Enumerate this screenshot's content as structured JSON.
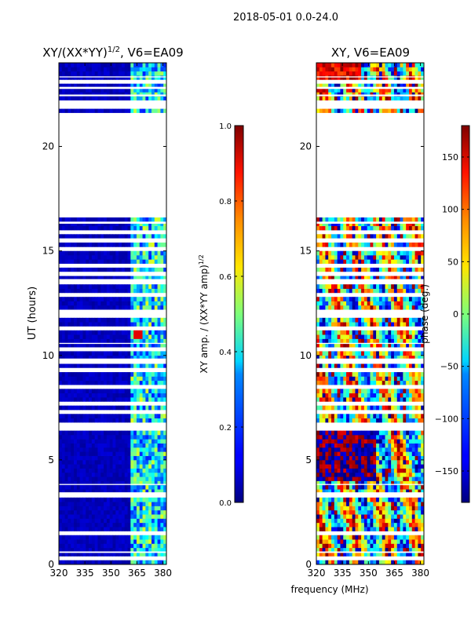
{
  "figure_title": "2018-05-01 0.0-24.0",
  "chart_data": [
    {
      "type": "heatmap",
      "title_main": "XY/(XX*YY)",
      "title_sup": "1/2",
      "title_tail": ", V6=EA09",
      "xlabel": "",
      "ylabel": "UT (hours)",
      "xlim": [
        320,
        382
      ],
      "ylim": [
        0,
        24
      ],
      "x_ticks": [
        320,
        335,
        350,
        365,
        380
      ],
      "y_ticks": [
        0,
        5,
        10,
        15,
        20
      ],
      "quantity": "normalized XY amplitude",
      "colorbar": {
        "label_main": "XY amp. / (XX*YY amp)",
        "label_sup": "1/2",
        "range": [
          0.0,
          1.0
        ],
        "ticks": [
          "0.0",
          "0.2",
          "0.4",
          "0.6",
          "0.8",
          "1.0"
        ],
        "tick_values": [
          0.0,
          0.2,
          0.4,
          0.6,
          0.8,
          1.0
        ]
      }
    },
    {
      "type": "heatmap",
      "title": "XY, V6=EA09",
      "xlabel": "frequency (MHz)",
      "ylabel": "",
      "xlim": [
        320,
        382
      ],
      "ylim": [
        0,
        24
      ],
      "x_ticks": [
        320,
        335,
        350,
        365,
        380
      ],
      "y_ticks": [
        0,
        5,
        10,
        15,
        20
      ],
      "quantity": "XY phase",
      "colorbar": {
        "label": "phase (deg.)",
        "range": [
          -180,
          180
        ],
        "ticks": [
          "−150",
          "−100",
          "−50",
          "0",
          "50",
          "100",
          "150"
        ],
        "tick_values": [
          -150,
          -100,
          -50,
          0,
          50,
          100,
          150
        ]
      }
    }
  ],
  "data_gaps_ut": [
    [
      0.22,
      0.32
    ],
    [
      0.55,
      0.62
    ],
    [
      1.45,
      1.55
    ],
    [
      3.25,
      3.45
    ],
    [
      3.8,
      3.85
    ],
    [
      6.5,
      6.7
    ],
    [
      7.3,
      7.38
    ],
    [
      7.65,
      7.75
    ],
    [
      8.5,
      8.56
    ],
    [
      9.25,
      9.4
    ],
    [
      9.6,
      9.85
    ],
    [
      10.3,
      10.38
    ],
    [
      10.55,
      10.6
    ],
    [
      11.3,
      11.35
    ],
    [
      11.9,
      11.98
    ],
    [
      12.1,
      12.18
    ],
    [
      12.9,
      12.98
    ],
    [
      13.5,
      13.65
    ],
    [
      13.9,
      14.0
    ],
    [
      14.25,
      14.32
    ],
    [
      15.0,
      15.12
    ],
    [
      15.5,
      15.6
    ],
    [
      15.85,
      15.95
    ],
    [
      16.3,
      16.4
    ],
    [
      16.7,
      21.6
    ],
    [
      21.85,
      21.95
    ],
    [
      22.1,
      22.2
    ],
    [
      22.4,
      22.48
    ],
    [
      22.75,
      22.85
    ],
    [
      23.05,
      23.12
    ],
    [
      23.3,
      23.35
    ]
  ],
  "spectral_features": {
    "amp_band_mhz": [
      362,
      382
    ],
    "amp_hot_ut": [
      10.8,
      11.1
    ],
    "amp_hot_mhz": [
      363,
      368
    ]
  }
}
